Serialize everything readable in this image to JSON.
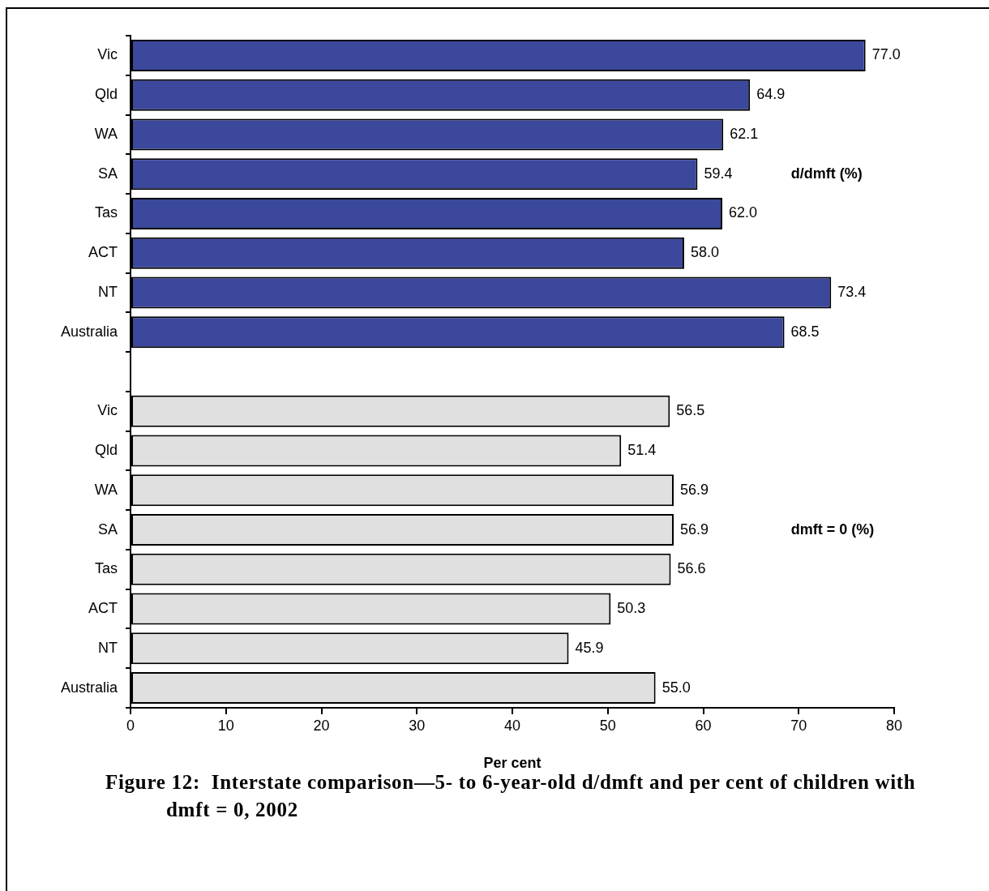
{
  "chart_data": {
    "type": "bar",
    "orientation": "horizontal",
    "xlabel": "Per cent",
    "categories": [
      "Vic",
      "Qld",
      "WA",
      "SA",
      "Tas",
      "ACT",
      "NT",
      "Australia",
      null,
      "Vic",
      "Qld",
      "WA",
      "SA",
      "Tas",
      "ACT",
      "NT",
      "Australia"
    ],
    "series": [
      {
        "name": "d/dmft (%)",
        "color": "#3c489c",
        "values": [
          77.0,
          64.9,
          62.1,
          59.4,
          62.0,
          58.0,
          73.4,
          68.5,
          null,
          null,
          null,
          null,
          null,
          null,
          null,
          null,
          null
        ],
        "value_labels": [
          "77.0",
          "64.9",
          "62.1",
          "59.4",
          "62.0",
          "58.0",
          "73.4",
          "68.5",
          null,
          null,
          null,
          null,
          null,
          null,
          null,
          null,
          null
        ]
      },
      {
        "name": "dmft = 0 (%)",
        "color": "#e0e0e0",
        "values": [
          null,
          null,
          null,
          null,
          null,
          null,
          null,
          null,
          null,
          56.5,
          51.4,
          56.9,
          56.9,
          56.6,
          50.3,
          45.9,
          55.0
        ],
        "value_labels": [
          null,
          null,
          null,
          null,
          null,
          null,
          null,
          null,
          null,
          "56.5",
          "51.4",
          "56.9",
          "56.9",
          "56.6",
          "50.3",
          "45.9",
          "55.0"
        ]
      }
    ],
    "xlim": [
      0,
      80
    ],
    "xticks": [
      0,
      10,
      20,
      30,
      40,
      50,
      60,
      70,
      80
    ],
    "grid": false,
    "legend": false,
    "annotations": [
      "Figure 12:  Interstate comparison—5- to 6-year-old d/dmft and per cent of children with dmft = 0, 2002"
    ]
  }
}
